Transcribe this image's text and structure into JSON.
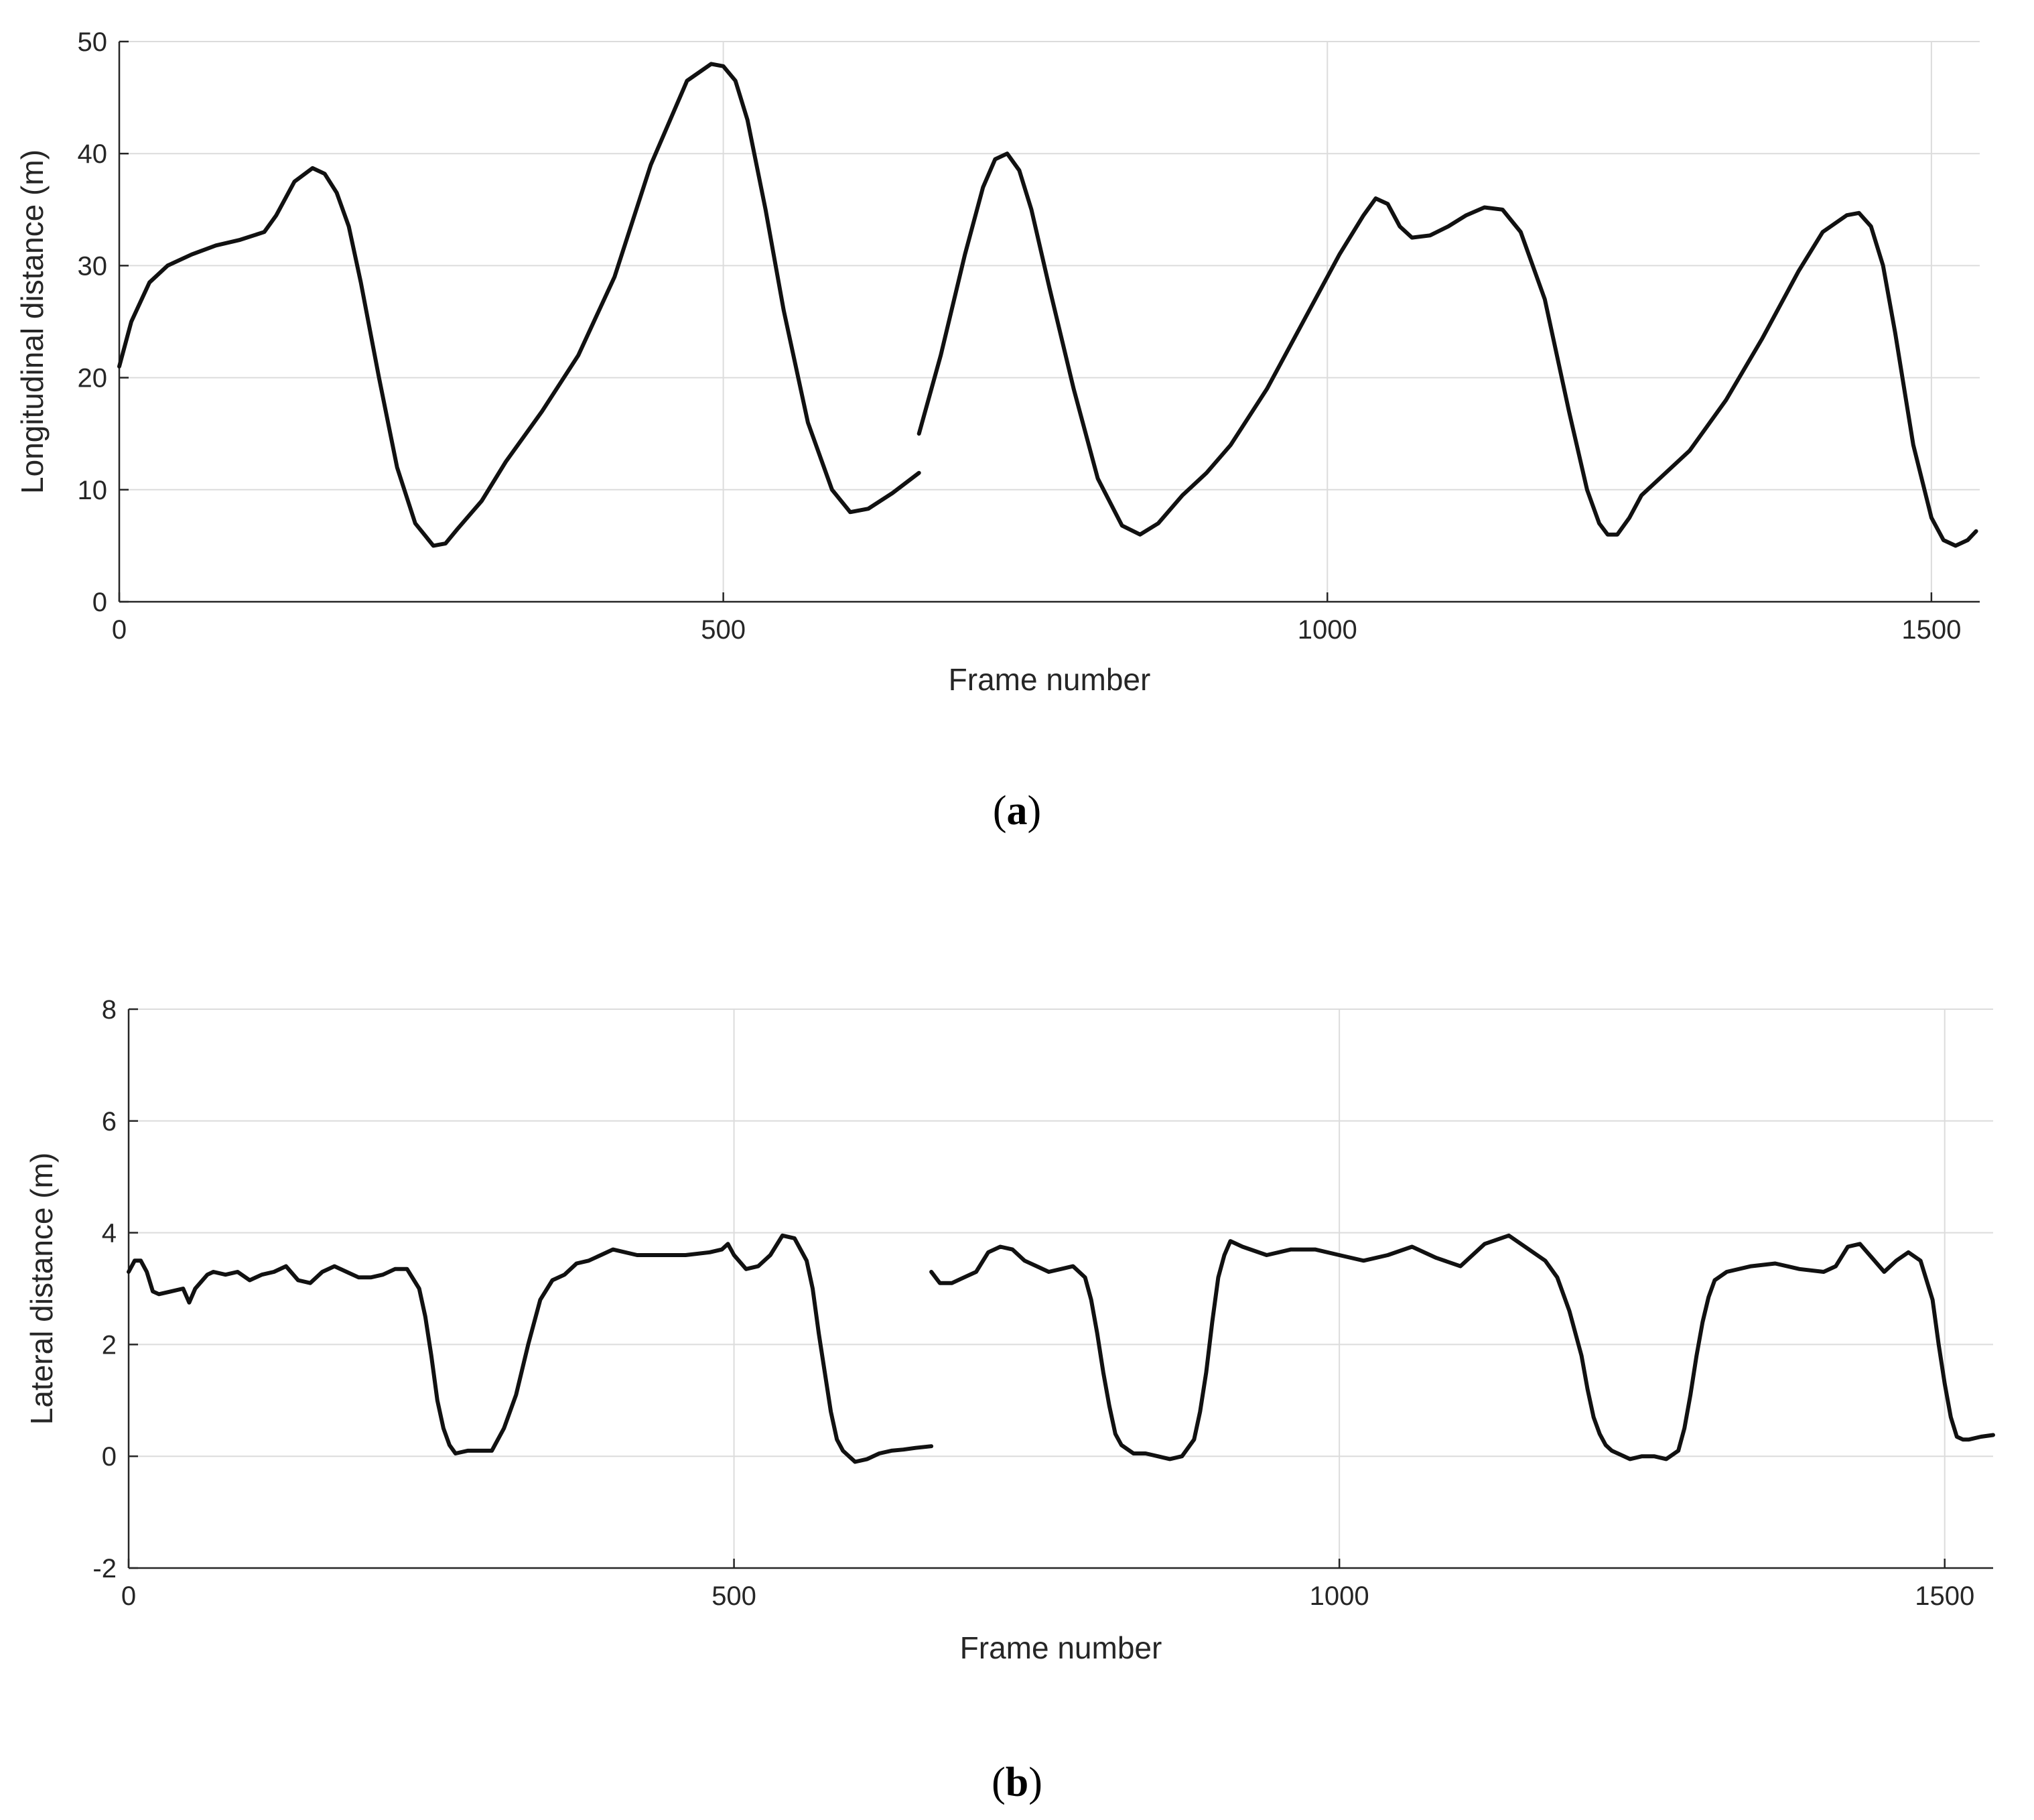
{
  "chart_data": [
    {
      "panel": "(a)",
      "panel_letter": "a",
      "type": "line",
      "xlabel": "Frame number",
      "ylabel": "Longitudinal distance (m)",
      "xlim": [
        0,
        1540
      ],
      "ylim": [
        0,
        50
      ],
      "xticks": [
        0,
        500,
        1000,
        1500
      ],
      "yticks": [
        0,
        10,
        20,
        30,
        40,
        50
      ],
      "grid": true,
      "color": "#111111",
      "series": [
        {
          "x": [
            0,
            10,
            25,
            40,
            60,
            80,
            100,
            120,
            130,
            145,
            160,
            170,
            180,
            190,
            200,
            215,
            230,
            245,
            260,
            270,
            280,
            300,
            320,
            350,
            380,
            410,
            440,
            470,
            490,
            500,
            510,
            520,
            535,
            550,
            570,
            590,
            605,
            620,
            640,
            662
          ],
          "y": [
            21,
            25,
            28.5,
            30,
            31,
            31.8,
            32.3,
            33,
            34.5,
            37.5,
            38.7,
            38.2,
            36.5,
            33.5,
            28.5,
            20,
            12,
            7,
            5,
            5.2,
            6.5,
            9,
            12.5,
            17,
            22,
            29,
            39,
            46.5,
            48,
            47.8,
            46.5,
            43,
            35,
            26,
            16,
            10,
            8,
            8.3,
            9.7,
            11.5
          ]
        },
        {
          "x": [
            662,
            680,
            700,
            715,
            725,
            735,
            745,
            755,
            770,
            790,
            810,
            830,
            845,
            860,
            880,
            900,
            920,
            950,
            980,
            1010,
            1030,
            1040,
            1050,
            1060,
            1070,
            1085,
            1100,
            1115,
            1130,
            1145,
            1160,
            1180,
            1200,
            1215,
            1225,
            1232,
            1240,
            1250,
            1260,
            1280,
            1300,
            1330,
            1360,
            1390,
            1410,
            1430,
            1440,
            1450,
            1460,
            1470,
            1485,
            1500,
            1510,
            1520,
            1530,
            1537
          ],
          "y": [
            15,
            22,
            31,
            37,
            39.5,
            40,
            38.5,
            35,
            28,
            19,
            11,
            6.8,
            6,
            7,
            9.5,
            11.5,
            14,
            19,
            25,
            31,
            34.5,
            36,
            35.5,
            33.5,
            32.5,
            32.7,
            33.5,
            34.5,
            35.2,
            35,
            33,
            27,
            17,
            10,
            7,
            6,
            6,
            7.5,
            9.5,
            11.5,
            13.5,
            18,
            23.5,
            29.5,
            33,
            34.5,
            34.7,
            33.5,
            30,
            24,
            14,
            7.5,
            5.5,
            5,
            5.5,
            6.3
          ]
        }
      ]
    },
    {
      "panel": "(b)",
      "panel_letter": "b",
      "type": "line",
      "xlabel": "Frame number",
      "ylabel": "Lateral distance (m)",
      "xlim": [
        0,
        1540
      ],
      "ylim": [
        -2,
        8
      ],
      "xticks": [
        0,
        500,
        1000,
        1500
      ],
      "yticks": [
        -2,
        0,
        2,
        4,
        6,
        8
      ],
      "grid": true,
      "color": "#111111",
      "series": [
        {
          "x": [
            0,
            5,
            10,
            15,
            20,
            25,
            35,
            45,
            50,
            55,
            65,
            70,
            80,
            90,
            100,
            110,
            120,
            130,
            140,
            150,
            160,
            170,
            180,
            190,
            200,
            210,
            220,
            230,
            240,
            245,
            250,
            255,
            260,
            265,
            270,
            280,
            290,
            300,
            310,
            320,
            330,
            340,
            350,
            360,
            370,
            380,
            390,
            400,
            420,
            440,
            460,
            480,
            490,
            495,
            500,
            510,
            520,
            530,
            540,
            550,
            560,
            565,
            570,
            575,
            580,
            585,
            590,
            600,
            610,
            620,
            630,
            640,
            650,
            663
          ],
          "y": [
            3.3,
            3.5,
            3.5,
            3.3,
            2.95,
            2.9,
            2.95,
            3.0,
            2.75,
            3.0,
            3.25,
            3.3,
            3.25,
            3.3,
            3.15,
            3.25,
            3.3,
            3.4,
            3.15,
            3.1,
            3.3,
            3.4,
            3.3,
            3.2,
            3.2,
            3.25,
            3.35,
            3.35,
            3.0,
            2.5,
            1.8,
            1.0,
            0.5,
            0.2,
            0.05,
            0.1,
            0.1,
            0.1,
            0.5,
            1.1,
            2.0,
            2.8,
            3.15,
            3.25,
            3.45,
            3.5,
            3.6,
            3.7,
            3.6,
            3.6,
            3.6,
            3.65,
            3.7,
            3.8,
            3.6,
            3.35,
            3.4,
            3.6,
            3.95,
            3.9,
            3.5,
            3.0,
            2.2,
            1.5,
            0.8,
            0.3,
            0.1,
            -0.1,
            -0.05,
            0.05,
            0.1,
            0.12,
            0.15,
            0.18
          ]
        },
        {
          "x": [
            663,
            670,
            680,
            690,
            700,
            710,
            720,
            730,
            740,
            750,
            760,
            770,
            780,
            790,
            795,
            800,
            805,
            810,
            815,
            820,
            830,
            840,
            850,
            860,
            870,
            880,
            885,
            890,
            895,
            900,
            905,
            910,
            920,
            940,
            960,
            980,
            1000,
            1020,
            1040,
            1060,
            1080,
            1100,
            1120,
            1140,
            1150,
            1160,
            1170,
            1180,
            1190,
            1200,
            1205,
            1210,
            1215,
            1220,
            1225,
            1230,
            1240,
            1250,
            1260,
            1270,
            1280,
            1285,
            1290,
            1295,
            1300,
            1305,
            1310,
            1320,
            1340,
            1360,
            1380,
            1400,
            1410,
            1420,
            1430,
            1440,
            1450,
            1460,
            1470,
            1480,
            1490,
            1495,
            1500,
            1505,
            1510,
            1515,
            1520,
            1530,
            1540
          ],
          "y": [
            3.3,
            3.1,
            3.1,
            3.2,
            3.3,
            3.65,
            3.75,
            3.7,
            3.5,
            3.4,
            3.3,
            3.35,
            3.4,
            3.2,
            2.8,
            2.2,
            1.5,
            0.9,
            0.4,
            0.2,
            0.05,
            0.05,
            0.0,
            -0.05,
            0.0,
            0.3,
            0.8,
            1.5,
            2.4,
            3.2,
            3.6,
            3.85,
            3.75,
            3.6,
            3.7,
            3.7,
            3.6,
            3.5,
            3.6,
            3.75,
            3.55,
            3.4,
            3.8,
            3.95,
            3.8,
            3.65,
            3.5,
            3.2,
            2.6,
            1.8,
            1.2,
            0.7,
            0.4,
            0.2,
            0.1,
            0.05,
            -0.05,
            0.0,
            0.0,
            -0.05,
            0.1,
            0.5,
            1.1,
            1.8,
            2.4,
            2.85,
            3.15,
            3.3,
            3.4,
            3.45,
            3.35,
            3.3,
            3.4,
            3.75,
            3.8,
            3.55,
            3.3,
            3.5,
            3.65,
            3.5,
            2.8,
            2.0,
            1.3,
            0.7,
            0.35,
            0.3,
            0.3,
            0.35,
            0.38
          ]
        }
      ]
    }
  ]
}
